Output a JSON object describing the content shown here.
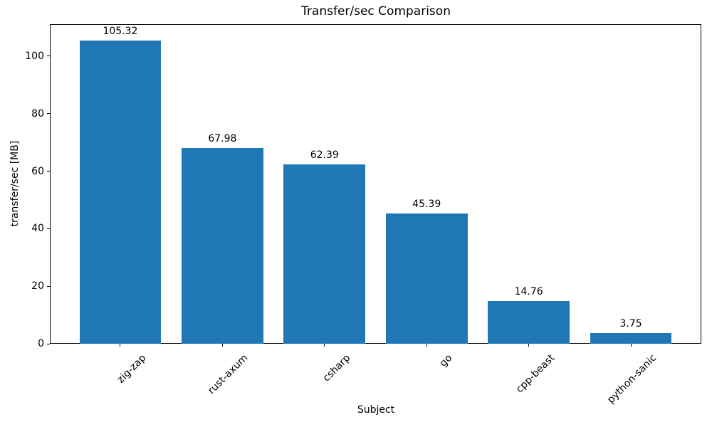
{
  "chart_data": {
    "type": "bar",
    "title": "Transfer/sec Comparison",
    "xlabel": "Subject",
    "ylabel": "transfer/sec [MB]",
    "categories": [
      "zig-zap",
      "rust-axum",
      "csharp",
      "go",
      "cpp-beast",
      "python-sanic"
    ],
    "values": [
      105.32,
      67.98,
      62.39,
      45.39,
      14.76,
      3.75
    ],
    "value_labels": [
      "105.32",
      "67.98",
      "62.39",
      "45.39",
      "14.76",
      "3.75"
    ],
    "ylim": [
      0,
      111.1
    ],
    "yticks": [
      0,
      20,
      40,
      60,
      80,
      100
    ],
    "bar_color": "#1f77b4",
    "grid": false,
    "legend": "none",
    "x_tick_rotation_deg": 45
  }
}
